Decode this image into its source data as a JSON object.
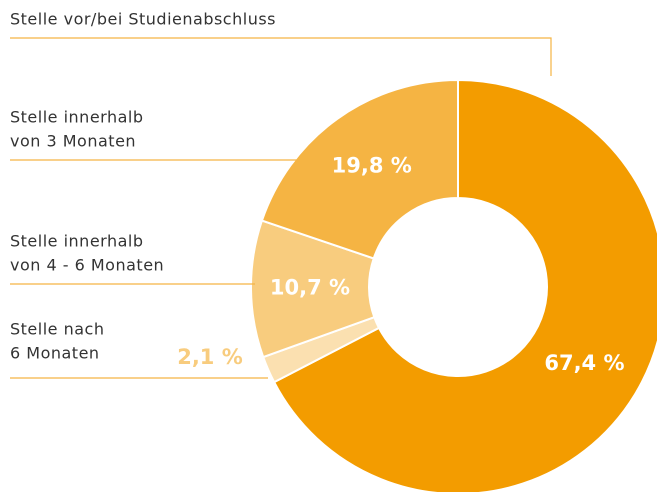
{
  "chart_data": {
    "type": "donut",
    "categories": [
      [
        "Stelle vor/bei Studienabschluss"
      ],
      [
        "Stelle nach",
        "6 Monaten"
      ],
      [
        "Stelle innerhalb",
        "von 4 - 6 Monaten"
      ],
      [
        "Stelle innerhalb",
        "von 3 Monaten"
      ]
    ],
    "values": [
      67.4,
      2.1,
      10.7,
      19.8
    ],
    "value_labels": [
      "67,4 %",
      "2,1 %",
      "10,7 %",
      "19,8 %"
    ],
    "colors": [
      "#f39c00",
      "#fbe0b0",
      "#f8cc7e",
      "#f5b443"
    ]
  }
}
